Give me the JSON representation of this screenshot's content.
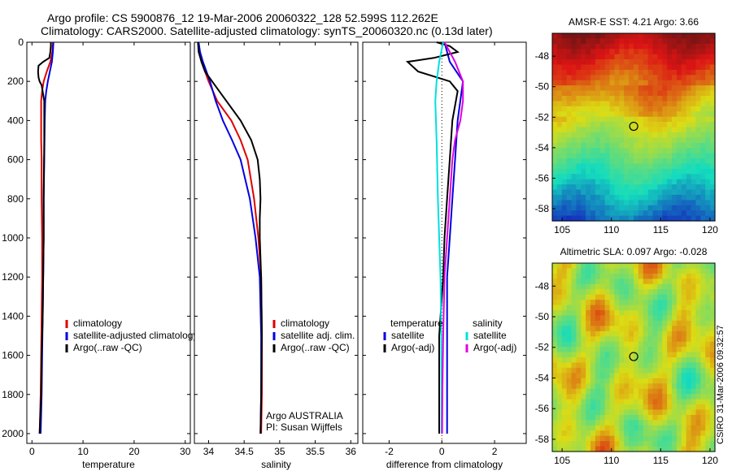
{
  "header": {
    "line1": "Argo profile: CS 5900876_12 19-Mar-2006 20060322_128 52.599S 112.262E",
    "line2": "Climatology: CARS2000. Satellite-adjusted climatology: synTS_20060320.nc (0.13d later)"
  },
  "credit": "CSIRO 31-Mar-2006 09:32:57",
  "colors": {
    "climatology": "#e00000",
    "satellite": "#0000e0",
    "argo": "#000000",
    "sal_satellite": "#00e0e0",
    "sal_argo": "#e000e0",
    "zero_line": "#000000"
  },
  "chart_data": [
    {
      "id": "temperature",
      "type": "line",
      "xlabel": "temperature",
      "ylabel": "",
      "xlim": [
        -1,
        31
      ],
      "ylim": [
        2050,
        0
      ],
      "xticks": [
        0,
        10,
        20,
        30
      ],
      "yticks": [
        0,
        200,
        400,
        600,
        800,
        1000,
        1200,
        1400,
        1600,
        1800,
        2000
      ],
      "legend": {
        "placement": "lower-right",
        "entries": [
          "climatology",
          "satellite-adjusted climatology",
          "Argo(..raw -QC)"
        ]
      },
      "series": [
        {
          "name": "climatology",
          "color_key": "climatology",
          "depth": [
            0,
            50,
            100,
            150,
            200,
            250,
            300,
            400,
            500,
            600,
            800,
            1000,
            1200,
            1400,
            1600,
            1800,
            2000
          ],
          "values": [
            4.1,
            4.0,
            3.6,
            2.9,
            2.3,
            2.0,
            1.8,
            1.8,
            1.8,
            1.9,
            1.9,
            2.0,
            2.0,
            1.9,
            1.8,
            1.7,
            1.5
          ]
        },
        {
          "name": "satellite-adjusted climatology",
          "color_key": "satellite",
          "depth": [
            0,
            50,
            100,
            150,
            200,
            250,
            300,
            400,
            600,
            800,
            1000,
            1200,
            1400,
            1600,
            1800,
            2000
          ],
          "values": [
            4.2,
            4.1,
            3.9,
            3.5,
            3.1,
            2.8,
            2.6,
            2.5,
            2.4,
            2.3,
            2.3,
            2.2,
            2.1,
            2.0,
            1.9,
            1.7
          ]
        },
        {
          "name": "Argo(..raw -QC)",
          "color_key": "argo",
          "depth": [
            0,
            20,
            50,
            80,
            100,
            120,
            150,
            180,
            200,
            220,
            300,
            500,
            800,
            1000,
            1200,
            1400,
            1600,
            1800,
            2000
          ],
          "values": [
            3.7,
            3.7,
            3.6,
            3.4,
            2.2,
            1.3,
            1.2,
            1.3,
            1.5,
            1.9,
            2.4,
            2.4,
            2.3,
            2.3,
            2.2,
            2.1,
            1.9,
            1.8,
            1.5
          ]
        }
      ]
    },
    {
      "id": "salinity",
      "type": "line",
      "xlabel": "salinity",
      "ylabel": "",
      "xlim": [
        33.8,
        36.1
      ],
      "ylim": [
        2050,
        0
      ],
      "xticks": [
        34,
        34.5,
        35,
        35.5,
        36
      ],
      "yticks": [
        0,
        200,
        400,
        600,
        800,
        1000,
        1200,
        1400,
        1600,
        1800,
        2000
      ],
      "legend": {
        "placement": "lower-right",
        "entries": [
          "climatology",
          "satellite adj. clim.",
          "Argo(..raw -QC)"
        ]
      },
      "annotation": [
        "Argo AUSTRALIA",
        "PI: Susan Wijffels"
      ],
      "series": [
        {
          "name": "climatology",
          "color_key": "climatology",
          "depth": [
            0,
            50,
            100,
            200,
            300,
            400,
            500,
            600,
            800,
            1000,
            1200,
            1500,
            1800,
            2000
          ],
          "values": [
            33.85,
            33.87,
            33.9,
            34.0,
            34.12,
            34.32,
            34.45,
            34.55,
            34.64,
            34.7,
            34.74,
            34.75,
            34.75,
            34.74
          ]
        },
        {
          "name": "satellite adj. clim.",
          "color_key": "satellite",
          "depth": [
            0,
            50,
            100,
            200,
            300,
            400,
            500,
            600,
            800,
            1000,
            1200,
            1500,
            1800,
            2000
          ],
          "values": [
            33.86,
            33.88,
            33.92,
            34.02,
            34.1,
            34.2,
            34.33,
            34.45,
            34.58,
            34.66,
            34.72,
            34.74,
            34.74,
            34.73
          ]
        },
        {
          "name": "Argo(..raw -QC)",
          "color_key": "argo",
          "depth": [
            0,
            50,
            100,
            150,
            200,
            300,
            400,
            500,
            600,
            700,
            800,
            900,
            1000,
            1200,
            1500,
            1800,
            2000
          ],
          "values": [
            33.85,
            33.86,
            33.9,
            33.95,
            34.05,
            34.25,
            34.45,
            34.6,
            34.69,
            34.72,
            34.73,
            34.72,
            34.72,
            34.74,
            34.75,
            34.74,
            34.73
          ]
        }
      ]
    },
    {
      "id": "difference",
      "type": "line",
      "xlabel": "difference from climatology",
      "ylabel": "",
      "xlim": [
        -3,
        3.2
      ],
      "ylim": [
        2050,
        0
      ],
      "xticks": [
        -2,
        0,
        2
      ],
      "yticks": [
        0,
        200,
        400,
        600,
        800,
        1000,
        1200,
        1400,
        1600,
        1800,
        2000
      ],
      "legend": {
        "placement": "lower-middle",
        "temperature_heading": "temperature",
        "salinity_heading": "salinity",
        "temperature_entries": [
          "satellite",
          "Argo(-adj)"
        ],
        "salinity_entries": [
          "satellite",
          "Argo(-adj)"
        ]
      },
      "series": [
        {
          "name": "satellite",
          "group": "temperature",
          "color_key": "satellite",
          "depth": [
            0,
            100,
            200,
            400,
            600,
            800,
            1000,
            1200,
            1500,
            1800,
            2000
          ],
          "values": [
            0.1,
            0.3,
            0.8,
            0.6,
            0.5,
            0.4,
            0.3,
            0.2,
            0.2,
            0.2,
            0.2
          ]
        },
        {
          "name": "Argo(-adj)",
          "group": "temperature",
          "color_key": "argo",
          "depth": [
            0,
            20,
            50,
            80,
            100,
            150,
            200,
            250,
            400,
            600,
            800,
            1000,
            1200,
            1500,
            1800,
            2000
          ],
          "values": [
            -0.2,
            0.3,
            0.6,
            -0.3,
            -1.3,
            -0.9,
            0.3,
            0.6,
            0.4,
            0.3,
            0.2,
            0.1,
            0.05,
            -0.1,
            -0.1,
            -0.1
          ]
        },
        {
          "name": "satellite",
          "group": "salinity",
          "color_key": "sal_satellite",
          "depth": [
            0,
            100,
            200,
            300,
            500,
            800,
            1000,
            1200,
            1500,
            1800,
            2000
          ],
          "values": [
            0.05,
            -0.1,
            -0.2,
            -0.25,
            -0.2,
            -0.15,
            -0.1,
            -0.05,
            -0.02,
            -0.01,
            -0.01
          ]
        },
        {
          "name": "Argo(-adj)",
          "group": "salinity",
          "color_key": "sal_argo",
          "depth": [
            0,
            50,
            100,
            200,
            300,
            400,
            500,
            600,
            800,
            1000,
            1200,
            1500,
            1800,
            2000
          ],
          "values": [
            0.1,
            0.3,
            0.5,
            0.8,
            0.8,
            0.7,
            0.5,
            0.4,
            0.3,
            0.2,
            0.1,
            0.05,
            0.02,
            0.01
          ]
        }
      ]
    },
    {
      "id": "sst-map",
      "type": "heatmap",
      "title": "AMSR-E SST: 4.21  Argo: 3.66",
      "xlim": [
        104,
        120.5
      ],
      "ylim": [
        -58.8,
        -46.5
      ],
      "xticks": [
        105,
        110,
        115,
        120
      ],
      "yticks": [
        -48,
        -50,
        -52,
        -54,
        -56,
        -58
      ],
      "marker": {
        "lon": 112.262,
        "lat": -52.599
      }
    },
    {
      "id": "sla-map",
      "type": "heatmap",
      "title": "Altimetric SLA: 0.097  Argo: -0.028",
      "xlim": [
        104,
        120.5
      ],
      "ylim": [
        -58.8,
        -46.5
      ],
      "xticks": [
        105,
        110,
        115,
        120
      ],
      "yticks": [
        -48,
        -50,
        -52,
        -54,
        -56,
        -58
      ],
      "marker": {
        "lon": 112.262,
        "lat": -52.599
      }
    }
  ]
}
